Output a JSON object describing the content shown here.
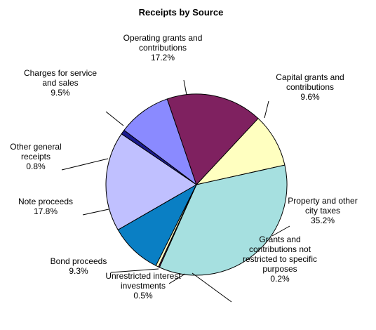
{
  "chart_data": {
    "type": "pie",
    "title": "Receipts by Source",
    "slices": [
      {
        "label_lines": [
          "Capital grants and",
          "contributions"
        ],
        "value": 9.6,
        "value_label": "9.6%",
        "color": "#FFFFC0"
      },
      {
        "label_lines": [
          "Property and other",
          "city taxes"
        ],
        "value": 35.2,
        "value_label": "35.2%",
        "color": "#A6E0E0"
      },
      {
        "label_lines": [
          "Grants and",
          "contributions not",
          "restricted to specific",
          "purposes"
        ],
        "value": 0.2,
        "value_label": "0.2%",
        "color": "#7A2A6A"
      },
      {
        "label_lines": [
          "Unrestricted interest",
          "investments"
        ],
        "value": 0.5,
        "value_label": "0.5%",
        "color": "#FFFFC8"
      },
      {
        "label_lines": [
          "Bond proceeds"
        ],
        "value": 9.3,
        "value_label": "9.3%",
        "color": "#0A7FC4"
      },
      {
        "label_lines": [
          "Note proceeds"
        ],
        "value": 17.8,
        "value_label": "17.8%",
        "color": "#C0C0FF"
      },
      {
        "label_lines": [
          "Other general",
          "receipts"
        ],
        "value": 0.8,
        "value_label": "0.8%",
        "color": "#1A1A8C"
      },
      {
        "label_lines": [
          "Charges for service",
          "and sales"
        ],
        "value": 9.5,
        "value_label": "9.5%",
        "color": "#8A8AFF"
      },
      {
        "label_lines": [
          "Operating grants and",
          "contributions"
        ],
        "value": 17.2,
        "value_label": "17.2%",
        "color": "#7F2160"
      }
    ],
    "legend": "none",
    "grid": false
  }
}
